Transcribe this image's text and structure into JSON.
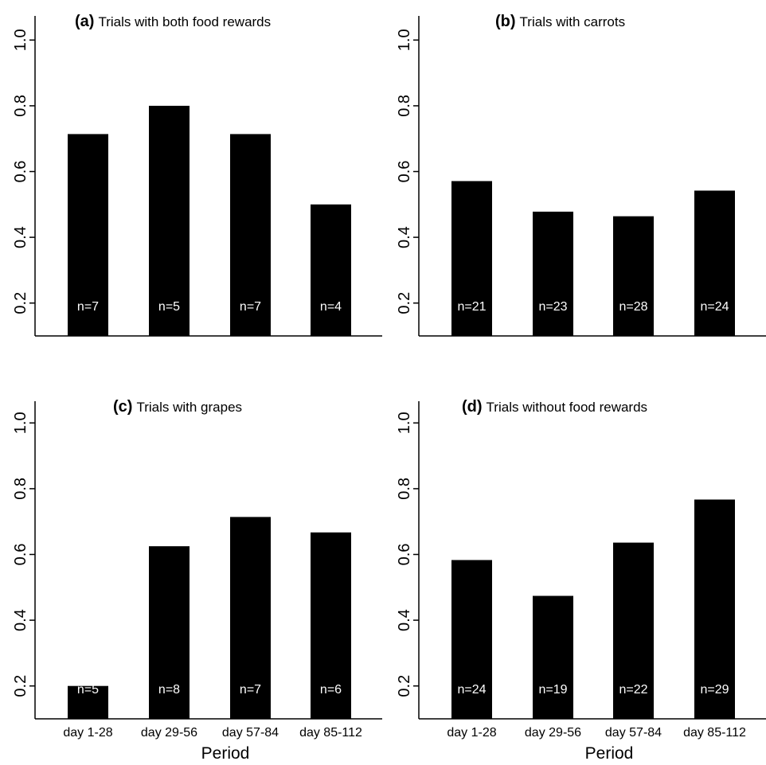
{
  "figure": {
    "xlabel": "Period"
  },
  "chart_data": [
    {
      "type": "bar",
      "panel": "(a)",
      "title": "Trials with both food rewards",
      "categories": [
        "day 1-28",
        "day 29-56",
        "day 57-84",
        "day 85-112"
      ],
      "values": [
        0.714,
        0.8,
        0.714,
        0.5
      ],
      "n_labels": [
        "n=7",
        "n=5",
        "n=7",
        "n=4"
      ],
      "ylim": [
        0.1,
        1.0
      ],
      "yticks": [
        "0.2",
        "0.4",
        "0.6",
        "0.8",
        "1.0"
      ],
      "bar_color": "#000000",
      "show_xticks": false,
      "xlabel": ""
    },
    {
      "type": "bar",
      "panel": "(b)",
      "title": "Trials with carrots",
      "categories": [
        "day 1-28",
        "day 29-56",
        "day 57-84",
        "day 85-112"
      ],
      "values": [
        0.571,
        0.478,
        0.464,
        0.542
      ],
      "n_labels": [
        "n=21",
        "n=23",
        "n=28",
        "n=24"
      ],
      "ylim": [
        0.1,
        1.0
      ],
      "yticks": [
        "0.2",
        "0.4",
        "0.6",
        "0.8",
        "1.0"
      ],
      "bar_color": "#000000",
      "show_xticks": false,
      "xlabel": ""
    },
    {
      "type": "bar",
      "panel": "(c)",
      "title": "Trials with grapes",
      "categories": [
        "day 1-28",
        "day 29-56",
        "day 57-84",
        "day 85-112"
      ],
      "values": [
        0.2,
        0.625,
        0.714,
        0.667
      ],
      "n_labels": [
        "n=5",
        "n=8",
        "n=7",
        "n=6"
      ],
      "ylim": [
        0.1,
        1.0
      ],
      "yticks": [
        "0.2",
        "0.4",
        "0.6",
        "0.8",
        "1.0"
      ],
      "bar_color": "#000000",
      "show_xticks": true,
      "xlabel": "Period"
    },
    {
      "type": "bar",
      "panel": "(d)",
      "title": "Trials without food rewards",
      "categories": [
        "day 1-28",
        "day 29-56",
        "day 57-84",
        "day 85-112"
      ],
      "values": [
        0.583,
        0.474,
        0.636,
        0.767
      ],
      "n_labels": [
        "n=24",
        "n=19",
        "n=22",
        "n=29"
      ],
      "ylim": [
        0.1,
        1.0
      ],
      "yticks": [
        "0.2",
        "0.4",
        "0.6",
        "0.8",
        "1.0"
      ],
      "bar_color": "#000000",
      "show_xticks": true,
      "xlabel": "Period"
    }
  ]
}
